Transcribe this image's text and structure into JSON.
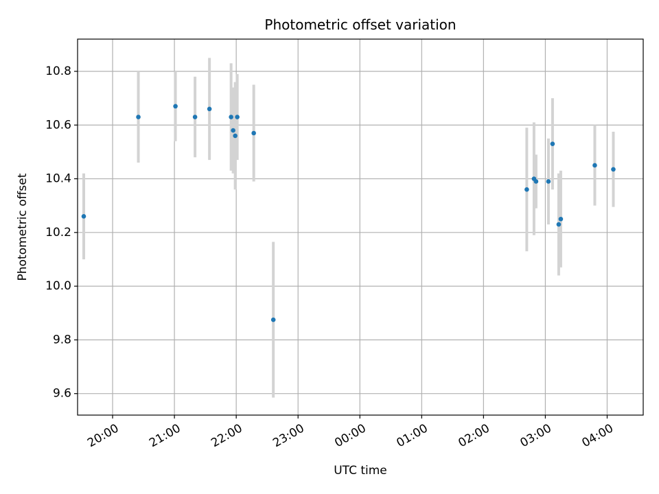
{
  "chart_data": {
    "type": "scatter",
    "title": "Photometric offset variation",
    "xlabel": "UTC time",
    "ylabel": "Photometric offset",
    "grid": true,
    "x_axis": {
      "type": "time",
      "range": [
        "19:26",
        "04:35"
      ],
      "ticks": [
        "20:00",
        "21:00",
        "22:00",
        "23:00",
        "00:00",
        "01:00",
        "02:00",
        "03:00",
        "04:00"
      ]
    },
    "ylim": [
      9.52,
      10.92
    ],
    "yticks": [
      "9.6",
      "9.8",
      "10.0",
      "10.2",
      "10.4",
      "10.6",
      "10.8"
    ],
    "colors": {
      "point": "#1f77b4",
      "errorbar": "#d3d3d3",
      "grid": "#b0b0b0"
    },
    "points": [
      {
        "x": "19:32",
        "y": 10.26,
        "yerr": 0.16
      },
      {
        "x": "20:25",
        "y": 10.63,
        "yerr": 0.17
      },
      {
        "x": "21:01",
        "y": 10.67,
        "yerr": 0.13
      },
      {
        "x": "21:20",
        "y": 10.63,
        "yerr": 0.15
      },
      {
        "x": "21:34",
        "y": 10.66,
        "yerr": 0.19
      },
      {
        "x": "21:55",
        "y": 10.63,
        "yerr": 0.2
      },
      {
        "x": "21:57",
        "y": 10.58,
        "yerr": 0.16
      },
      {
        "x": "21:59",
        "y": 10.56,
        "yerr": 0.2
      },
      {
        "x": "22:01",
        "y": 10.63,
        "yerr": 0.16
      },
      {
        "x": "22:17",
        "y": 10.57,
        "yerr": 0.18
      },
      {
        "x": "22:36",
        "y": 9.875,
        "yerr": 0.29
      },
      {
        "x": "02:42",
        "y": 10.36,
        "yerr": 0.23
      },
      {
        "x": "02:49",
        "y": 10.4,
        "yerr": 0.21
      },
      {
        "x": "02:51",
        "y": 10.39,
        "yerr": 0.1
      },
      {
        "x": "03:03",
        "y": 10.39,
        "yerr": 0.16
      },
      {
        "x": "03:07",
        "y": 10.53,
        "yerr": 0.17
      },
      {
        "x": "03:13",
        "y": 10.23,
        "yerr": 0.19
      },
      {
        "x": "03:15",
        "y": 10.25,
        "yerr": 0.18
      },
      {
        "x": "03:48",
        "y": 10.45,
        "yerr": 0.15
      },
      {
        "x": "04:06",
        "y": 10.435,
        "yerr": 0.14
      }
    ]
  }
}
